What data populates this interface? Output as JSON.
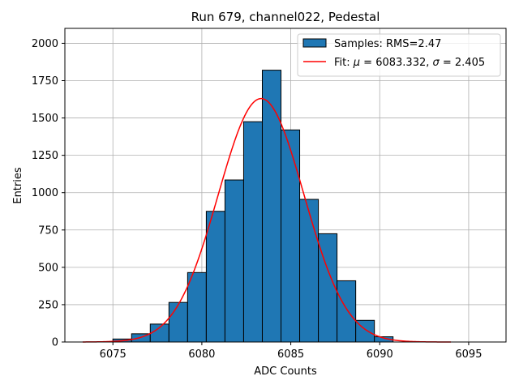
{
  "chart_data": {
    "type": "bar",
    "title": "Run 679, channel022, Pedestal",
    "xlabel": "ADC Counts",
    "ylabel": "Entries",
    "xlim": [
      6072.3,
      6097.1
    ],
    "ylim": [
      0,
      2100
    ],
    "xticks": [
      6075,
      6080,
      6085,
      6090,
      6095
    ],
    "yticks": [
      0,
      250,
      500,
      750,
      1000,
      1250,
      1500,
      1750,
      2000
    ],
    "grid": true,
    "legend_position": "top-right",
    "bin_width": 1.05,
    "bin_color": "#1f77b4",
    "fit_color": "#ff0000",
    "bins": {
      "left_edges": [
        6075.0,
        6076.05,
        6077.1,
        6078.15,
        6079.2,
        6080.25,
        6081.3,
        6082.35,
        6083.4,
        6084.45,
        6085.5,
        6086.55,
        6087.6,
        6088.65,
        6089.7
      ],
      "counts": [
        20,
        55,
        120,
        265,
        465,
        875,
        1085,
        1475,
        1820,
        1420,
        955,
        725,
        410,
        145,
        35
      ]
    },
    "fit": {
      "mu": 6083.332,
      "sigma": 2.405,
      "amplitude": 1630,
      "x_range": [
        6073.3,
        6094.0
      ]
    },
    "legend": [
      {
        "label": "Samples: RMS=2.47",
        "kind": "patch"
      },
      {
        "label_prefix": "Fit: ",
        "mu_symbol": "μ",
        "mu_text": " = 6083.332, ",
        "sigma_symbol": "σ",
        "sigma_text": " = 2.405",
        "kind": "line"
      }
    ]
  }
}
